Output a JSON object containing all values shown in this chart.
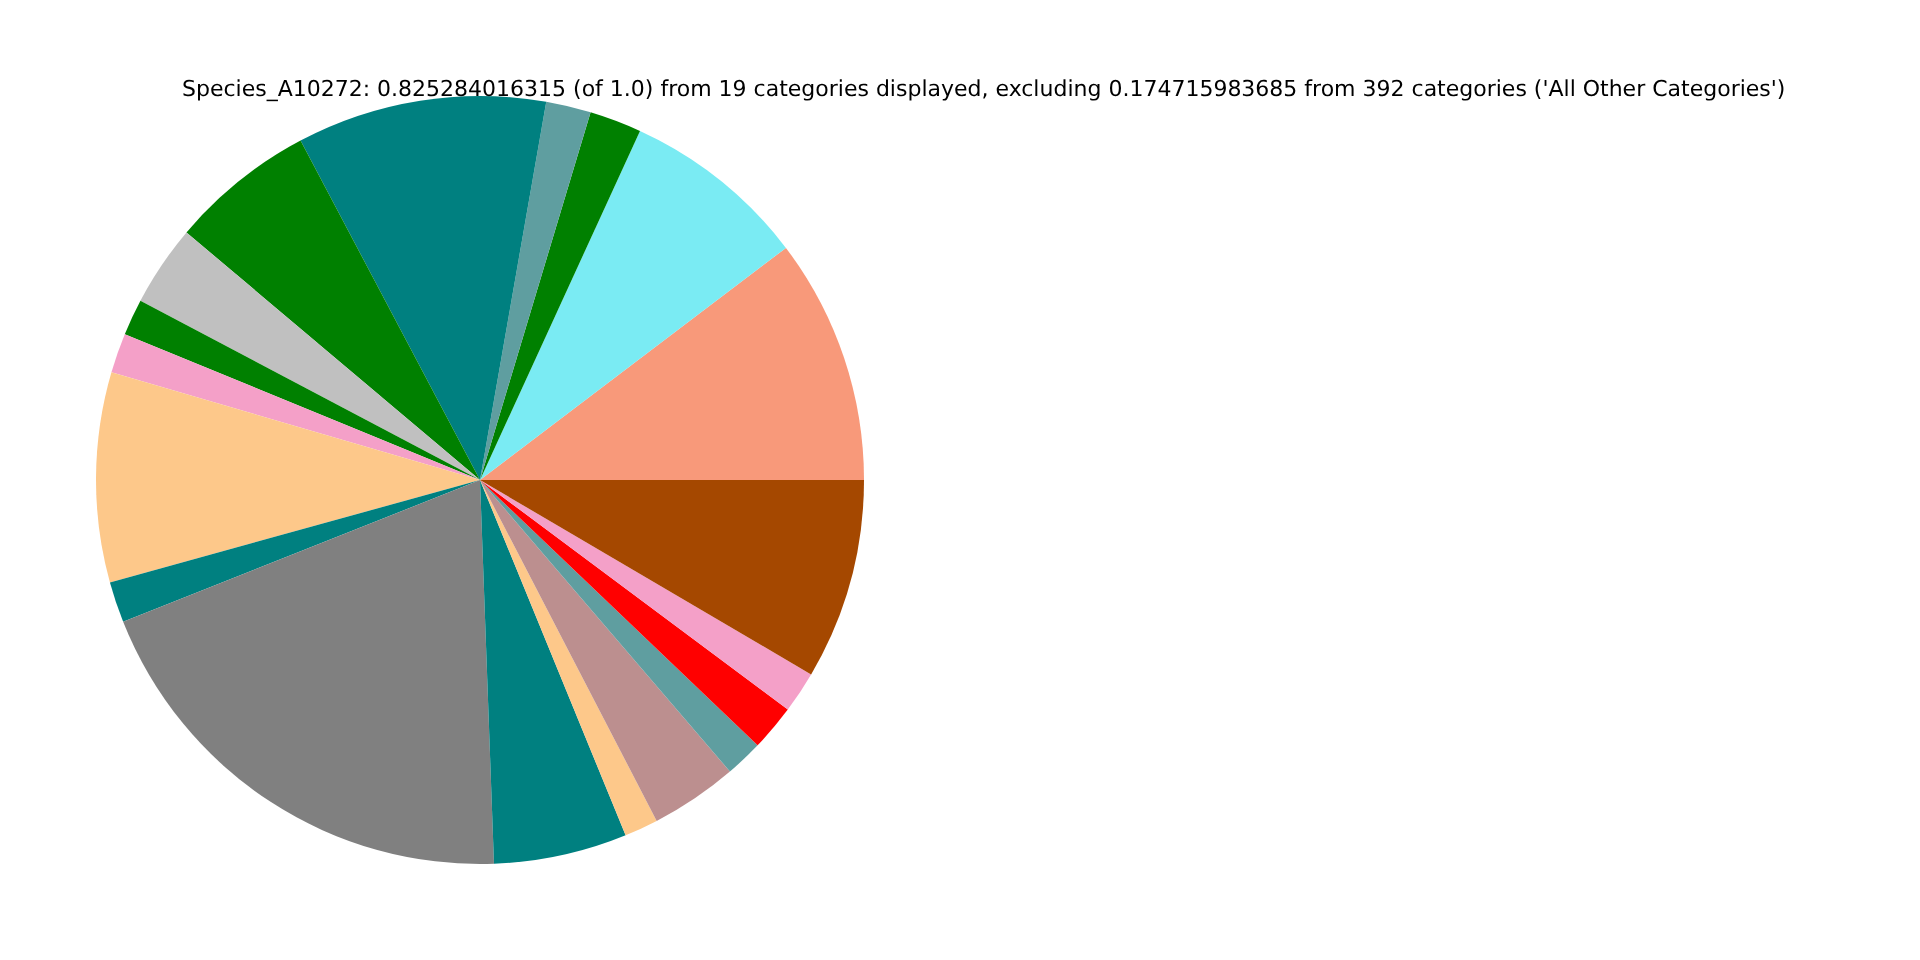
{
  "chart_data": {
    "type": "pie",
    "title": "Species_A10272: 0.825284016315 (of 1.0) from 19 categories displayed, excluding 0.174715983685 from 392 categories ('All Other Categories')",
    "categories": [
      null,
      null,
      null,
      null,
      null,
      null,
      null,
      null,
      null,
      null,
      null,
      null,
      null,
      null,
      null,
      null,
      null,
      null,
      null
    ],
    "values": [
      10.33,
      7.83,
      2.19,
      1.89,
      10.5,
      6.11,
      3.42,
      1.53,
      1.67,
      8.83,
      1.72,
      19.56,
      5.61,
      1.42,
      3.67,
      1.58,
      1.94,
      1.75,
      8.45
    ],
    "colors": [
      "#f8997a",
      "#7aebf3",
      "#008000",
      "#5f9ea0",
      "#008080",
      "#008000",
      "#c0c0c0",
      "#008000",
      "#f4a0c8",
      "#fdc88a",
      "#008080",
      "#808080",
      "#008080",
      "#fdc88a",
      "#bc8f8f",
      "#5f9ea0",
      "#ff0000",
      "#f4a0c8",
      "#a54800"
    ]
  }
}
